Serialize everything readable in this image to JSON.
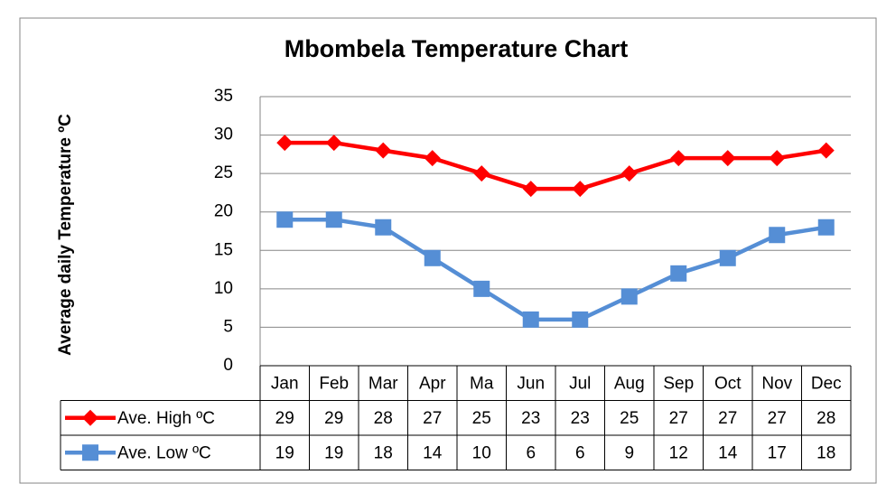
{
  "chart_data": {
    "type": "line",
    "title": "Mbombela Temperature Chart",
    "y_label": "Average daily Temperature ºC",
    "categories": [
      "Jan",
      "Feb",
      "Mar",
      "Apr",
      "Ma",
      "Jun",
      "Jul",
      "Aug",
      "Sep",
      "Oct",
      "Nov",
      "Dec"
    ],
    "series": [
      {
        "name": "Ave. High ºC",
        "color": "#ff0000",
        "marker": "diamond",
        "values": [
          29,
          29,
          28,
          27,
          25,
          23,
          23,
          25,
          27,
          27,
          27,
          28
        ]
      },
      {
        "name": "Ave. Low ºC",
        "color": "#558ed5",
        "marker": "square",
        "values": [
          19,
          19,
          18,
          14,
          10,
          6,
          6,
          9,
          12,
          14,
          17,
          18
        ]
      }
    ],
    "ylim": [
      0,
      35
    ],
    "yticks": [
      0,
      5,
      10,
      15,
      20,
      25,
      30,
      35
    ],
    "grid": true,
    "data_table": true
  }
}
